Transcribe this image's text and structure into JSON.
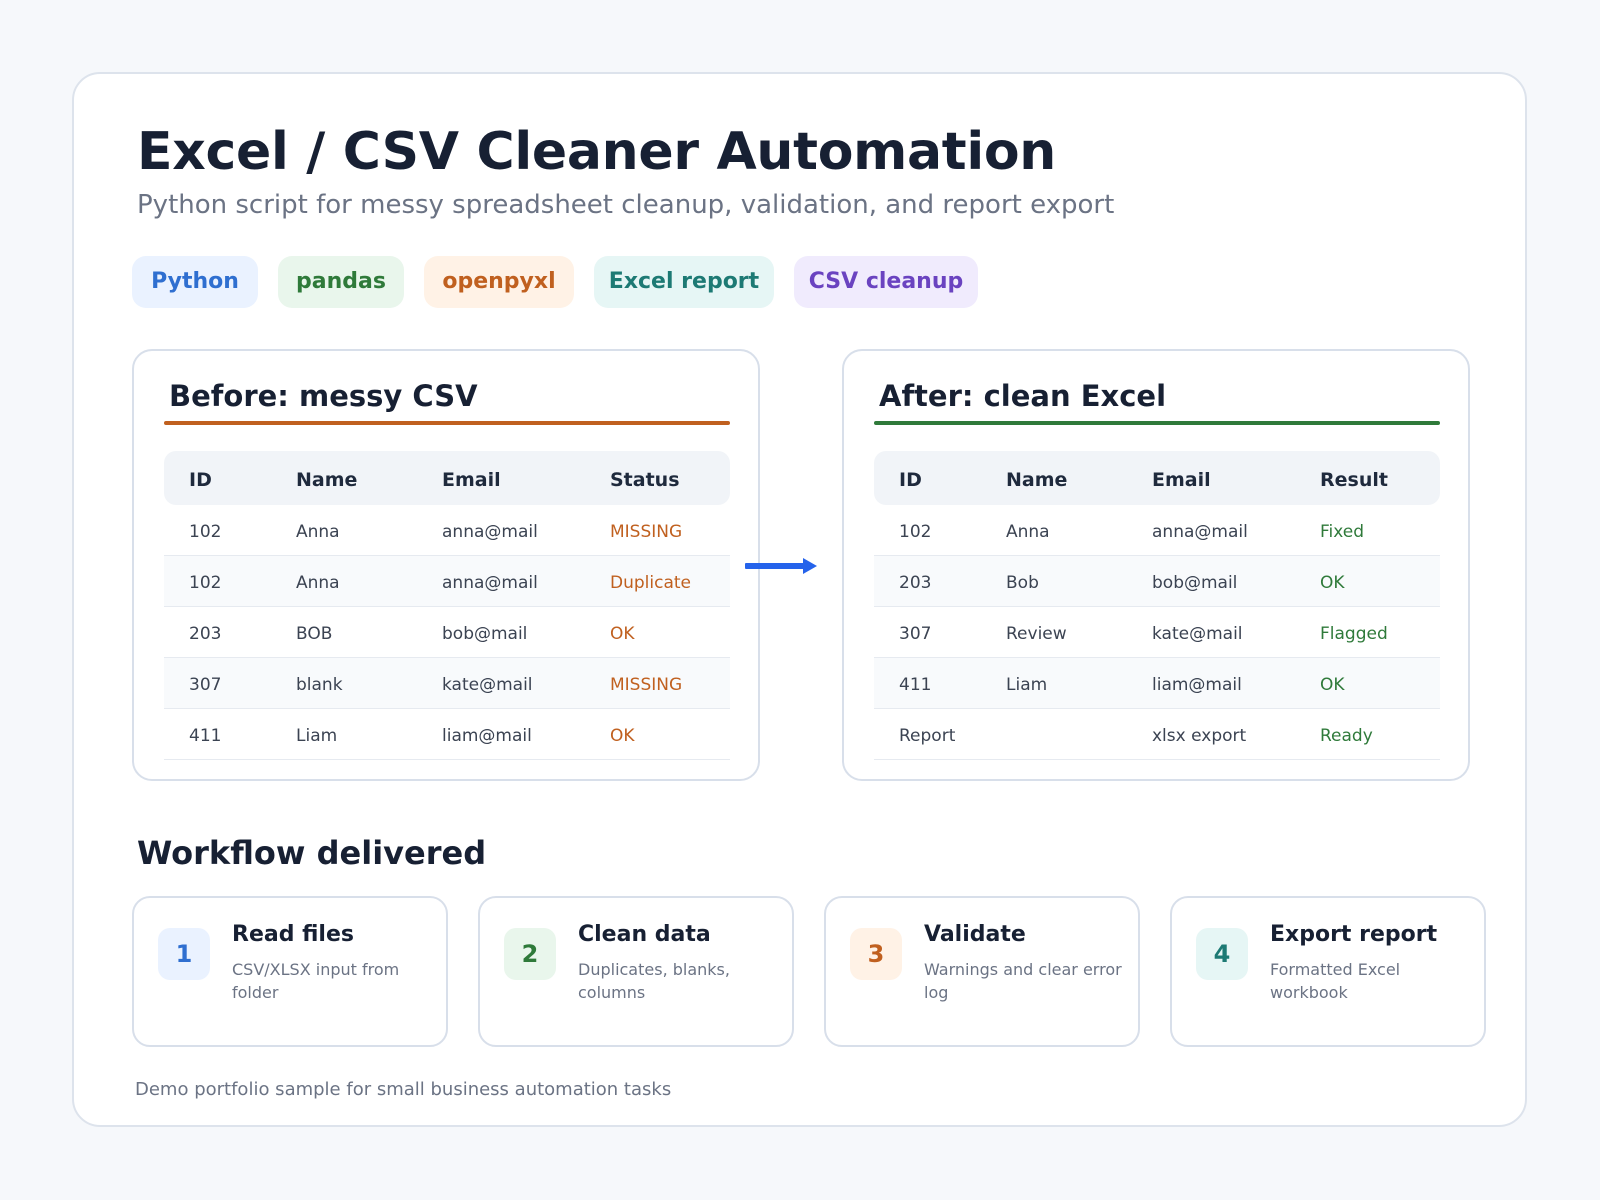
{
  "header": {
    "title": "Excel / CSV Cleaner Automation",
    "subtitle": "Python script for messy spreadsheet cleanup, validation, and report export"
  },
  "tags": [
    {
      "label": "Python",
      "bg": "#eaf2ff",
      "fg": "#2f6fd0"
    },
    {
      "label": "pandas",
      "bg": "#e9f6ec",
      "fg": "#2f7a3a"
    },
    {
      "label": "openpyxl",
      "bg": "#fff2e6",
      "fg": "#c0601f"
    },
    {
      "label": "Excel report",
      "bg": "#e6f6f5",
      "fg": "#1d7a74"
    },
    {
      "label": "CSV cleanup",
      "bg": "#f0ebfd",
      "fg": "#6a43c0"
    }
  ],
  "before": {
    "title": "Before: messy CSV",
    "accent": "#c0601f",
    "columns": [
      "ID",
      "Name",
      "Email",
      "Status"
    ],
    "rows": [
      [
        "102",
        "Anna",
        "anna@mail",
        "MISSING"
      ],
      [
        "102",
        "Anna",
        "anna@mail",
        "Duplicate"
      ],
      [
        "203",
        "BOB",
        "bob@mail",
        "OK"
      ],
      [
        "307",
        "blank",
        "kate@mail",
        "MISSING"
      ],
      [
        "411",
        "Liam",
        "liam@mail",
        "OK"
      ]
    ]
  },
  "after": {
    "title": "After: clean Excel",
    "accent": "#2f7a3a",
    "columns": [
      "ID",
      "Name",
      "Email",
      "Result"
    ],
    "rows": [
      [
        "102",
        "Anna",
        "anna@mail",
        "Fixed"
      ],
      [
        "203",
        "Bob",
        "bob@mail",
        "OK"
      ],
      [
        "307",
        "Review",
        "kate@mail",
        "Flagged"
      ],
      [
        "411",
        "Liam",
        "liam@mail",
        "OK"
      ],
      [
        "Report",
        "",
        "xlsx export",
        "Ready"
      ]
    ]
  },
  "arrow_color": "#2563eb",
  "workflow": {
    "title": "Workflow delivered",
    "steps": [
      {
        "num": "1",
        "title": "Read files",
        "desc": "CSV/XLSX input from folder",
        "bg": "#eaf2ff",
        "fg": "#2f6fd0"
      },
      {
        "num": "2",
        "title": "Clean data",
        "desc": "Duplicates, blanks, columns",
        "bg": "#e9f6ec",
        "fg": "#2f7a3a"
      },
      {
        "num": "3",
        "title": "Validate",
        "desc": "Warnings and clear error log",
        "bg": "#fff2e6",
        "fg": "#c0601f"
      },
      {
        "num": "4",
        "title": "Export report",
        "desc": "Formatted Excel workbook",
        "bg": "#e6f6f5",
        "fg": "#1d7a74"
      }
    ]
  },
  "footer": "Demo portfolio sample for small business automation tasks"
}
